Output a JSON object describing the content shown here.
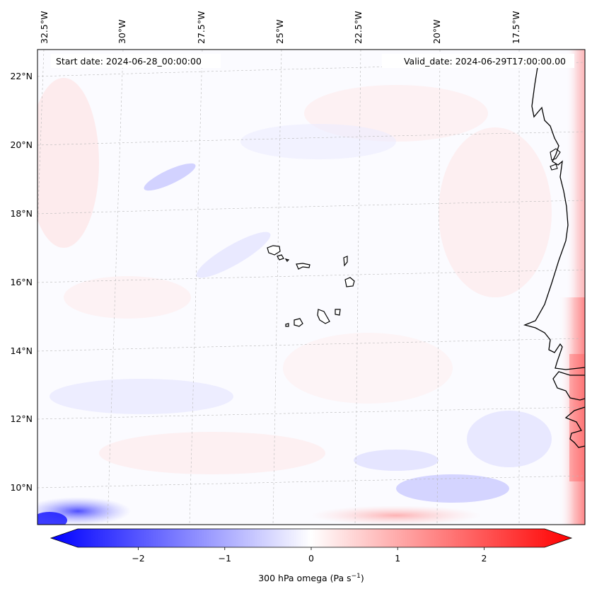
{
  "header": {
    "start_date": "Start date: 2024-06-28_00:00:00",
    "valid_date": "Valid_date: 2024-06-29T17:00:00.00"
  },
  "map": {
    "longitude_labels": [
      "32.5°W",
      "30°W",
      "27.5°W",
      "25°W",
      "22.5°W",
      "20°W",
      "17.5°W"
    ],
    "latitude_labels": [
      "22°N",
      "20°N",
      "18°N",
      "16°N",
      "14°N",
      "12°N",
      "10°N"
    ],
    "gridlines": true
  },
  "colorbar": {
    "label": "300 hPa omega (Pa s",
    "label_exponent": "−1",
    "label_close": ")",
    "ticks": [
      "−2",
      "−1",
      "0",
      "1",
      "2"
    ],
    "range": [
      -2.7,
      2.7
    ],
    "colors": {
      "negative": "#0000ff",
      "zero": "#ffffff",
      "positive": "#ff0000"
    }
  }
}
